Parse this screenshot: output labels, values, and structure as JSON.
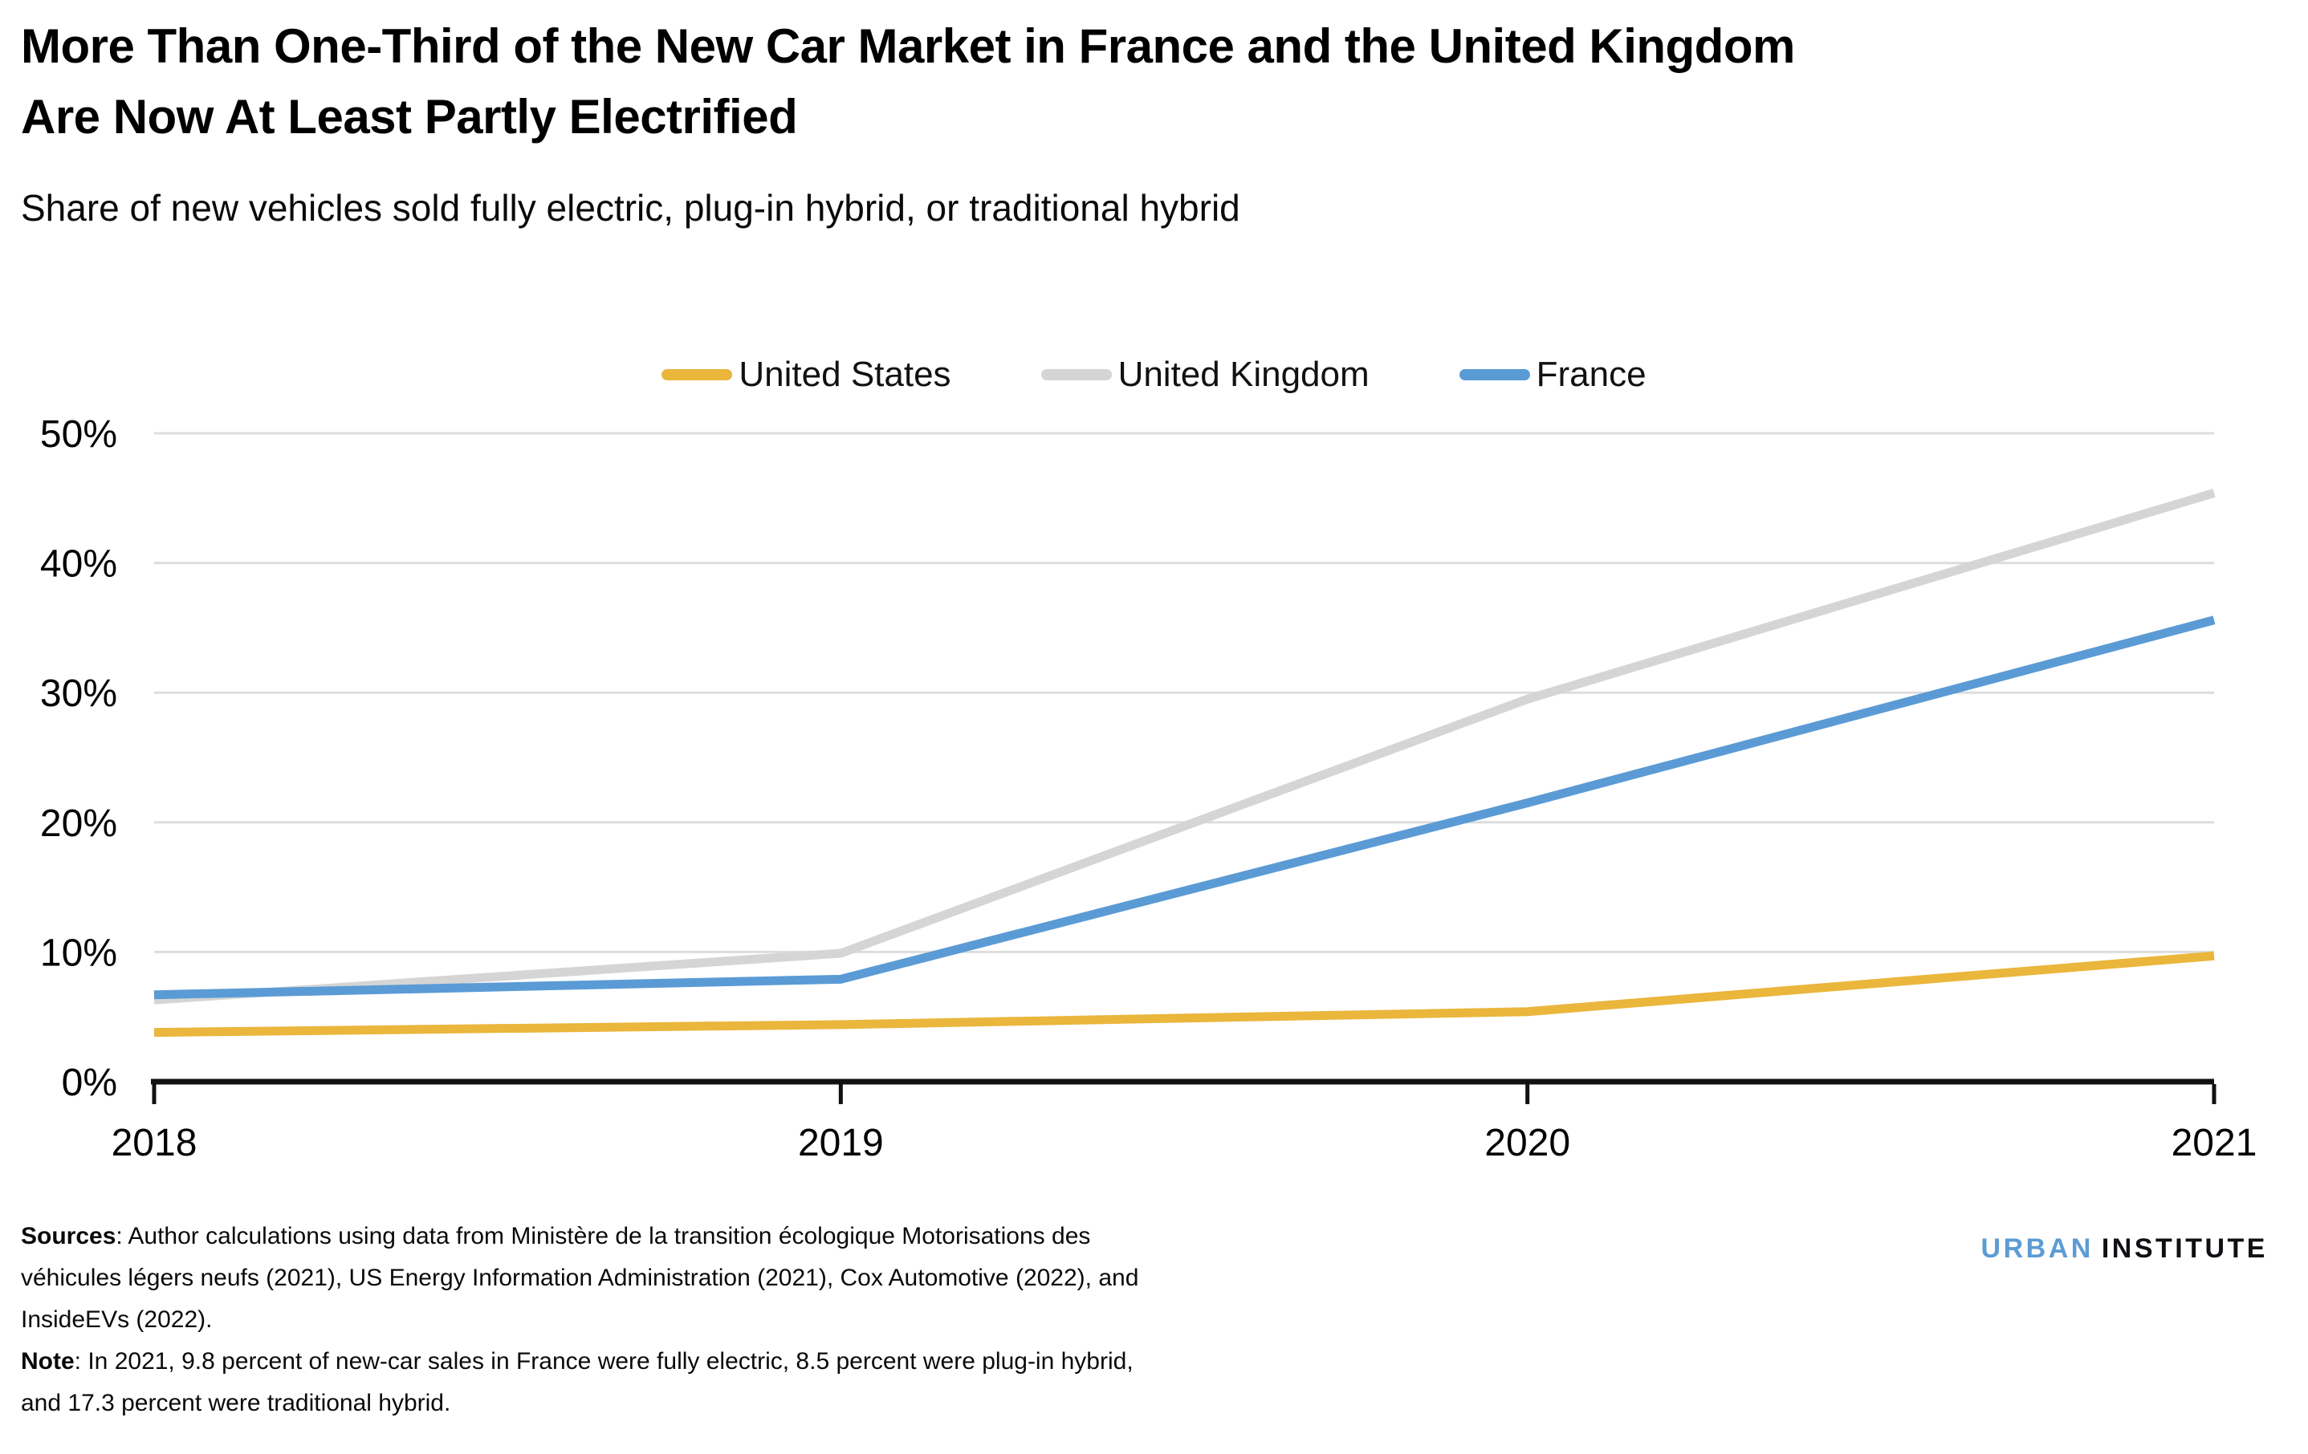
{
  "header": {
    "title_line1": "More Than One-Third of the New Car Market in France and the United Kingdom",
    "title_line2": "Are Now At Least Partly Electrified",
    "subtitle": "Share of new vehicles sold fully electric, plug-in hybrid, or traditional hybrid"
  },
  "chart_data": {
    "type": "line",
    "x": [
      "2018",
      "2019",
      "2020",
      "2021"
    ],
    "ylim": [
      0,
      50
    ],
    "yticks": [
      0,
      10,
      20,
      30,
      40,
      50
    ],
    "ytick_labels": [
      "0%",
      "10%",
      "20%",
      "30%",
      "40%",
      "50%"
    ],
    "grid": "horizontal",
    "legend_position": "top-center",
    "colors": {
      "gridline": "#dddddd",
      "axis": "#111111",
      "tick_label": "#000000"
    },
    "series": [
      {
        "name": "United States",
        "color": "#EAB63C",
        "values": [
          3.8,
          4.4,
          5.4,
          9.7
        ]
      },
      {
        "name": "United Kingdom",
        "color": "#D5D5D5",
        "values": [
          6.3,
          9.9,
          29.5,
          45.4
        ]
      },
      {
        "name": "France",
        "color": "#5B9BD5",
        "values": [
          6.7,
          7.9,
          21.5,
          35.6
        ]
      }
    ]
  },
  "footer": {
    "sources_label": "Sources",
    "sources_line1_rest": ": Author calculations using data from Ministère de la transition écologique Motorisations des",
    "sources_line2": "véhicules légers neufs (2021), US Energy Information Administration (2021), Cox Automotive (2022), and",
    "sources_line3": "InsideEVs (2022).",
    "note_label": "Note",
    "note_line1_rest": ": In 2021, 9.8 percent of new-car sales in France were fully electric, 8.5 percent were plug-in hybrid,",
    "note_line2": "and 17.3 percent were traditional hybrid.",
    "logo": {
      "word1": "URBAN",
      "word2": "INSTITUTE",
      "word1_color": "#5C9CD4",
      "word2_color": "#101014"
    }
  }
}
